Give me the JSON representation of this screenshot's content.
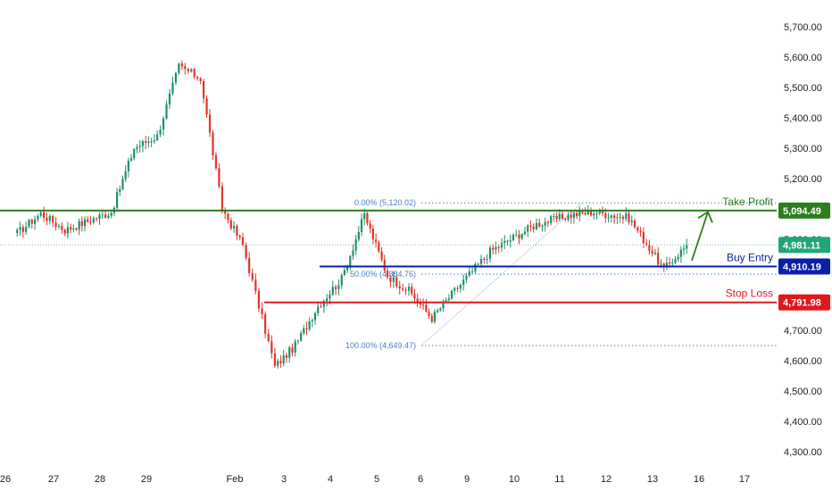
{
  "chart_data": {
    "type": "candlestick",
    "ylim": [
      4300,
      5750
    ],
    "y_ticks": [
      "5,700.00",
      "5,600.00",
      "5,500.00",
      "5,400.00",
      "5,300.00",
      "5,200.00",
      "5,100.00",
      "5,000.00",
      "4,900.00",
      "4,800.00",
      "4,700.00",
      "4,600.00",
      "4,500.00",
      "4,400.00",
      "4,300.00"
    ],
    "x_ticks": [
      "26",
      "27",
      "28",
      "29",
      "Feb",
      "3",
      "4",
      "5",
      "6",
      "9",
      "10",
      "11",
      "12",
      "13",
      "16",
      "17"
    ],
    "price_path": [
      {
        "x": "26",
        "y": 5020
      },
      {
        "x": "26",
        "y": 5085
      },
      {
        "x": "27",
        "y": 5030
      },
      {
        "x": "27",
        "y": 5060
      },
      {
        "x": "28",
        "y": 5090
      },
      {
        "x": "28",
        "y": 5300
      },
      {
        "x": "29",
        "y": 5340
      },
      {
        "x": "29",
        "y": 5570
      },
      {
        "x": "29",
        "y": 5530
      },
      {
        "x": "29",
        "y": 5100
      },
      {
        "x": "Feb",
        "y": 4980
      },
      {
        "x": "Feb",
        "y": 4780
      },
      {
        "x": "Feb",
        "y": 4580
      },
      {
        "x": "3",
        "y": 4650
      },
      {
        "x": "3",
        "y": 4780
      },
      {
        "x": "4",
        "y": 4870
      },
      {
        "x": "4",
        "y": 5080
      },
      {
        "x": "5",
        "y": 4880
      },
      {
        "x": "5",
        "y": 4830
      },
      {
        "x": "6",
        "y": 4740
      },
      {
        "x": "6",
        "y": 4830
      },
      {
        "x": "9",
        "y": 4960
      },
      {
        "x": "10",
        "y": 5050
      },
      {
        "x": "11",
        "y": 5080
      },
      {
        "x": "11",
        "y": 5090
      },
      {
        "x": "12",
        "y": 5070
      },
      {
        "x": "13",
        "y": 4900
      },
      {
        "x": "13",
        "y": 4981.11
      }
    ],
    "levels": [
      {
        "name": "Take Profit",
        "value": 5094.49,
        "label": "5,094.49",
        "color": "#2e7d1f"
      },
      {
        "name": "Buy Entry",
        "value": 4910.19,
        "label": "4,910.19",
        "color": "#0a1fa8"
      },
      {
        "name": "Stop Loss",
        "value": 4791.98,
        "label": "4,791.98",
        "color": "#e0191e"
      }
    ],
    "last_price": {
      "value": 4981.11,
      "label": "4,981.11",
      "color": "#22a57a"
    },
    "fibonacci": [
      {
        "label": "0.00% (5,120.02)",
        "value": 5120.02
      },
      {
        "label": "50.00% (4,884.76)",
        "value": 4884.76
      },
      {
        "label": "100.00% (4,649.47)",
        "value": 4649.47
      }
    ],
    "colors": {
      "up": "#1f8f6a",
      "down": "#e0352b",
      "fib": "#4a7fc1"
    }
  }
}
